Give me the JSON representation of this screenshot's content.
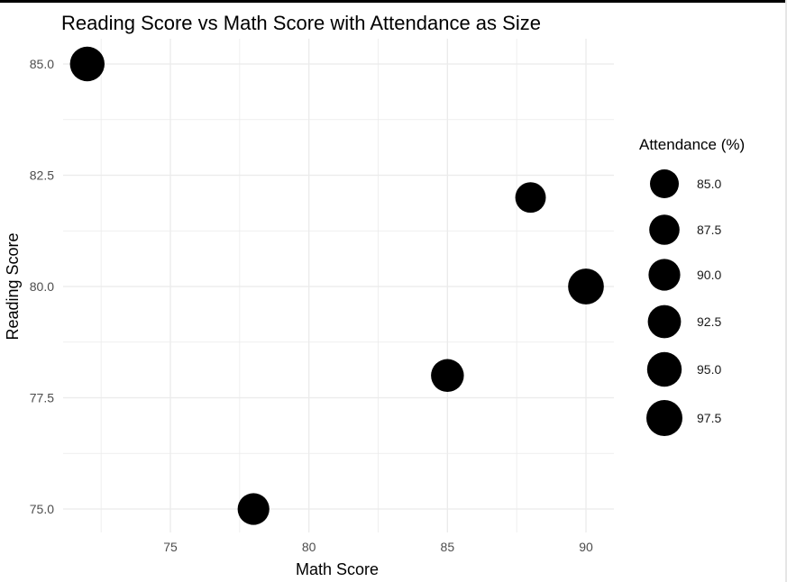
{
  "chart_data": {
    "type": "scatter",
    "title": "Reading Score vs Math Score with Attendance as Size",
    "xlabel": "Math Score",
    "ylabel": "Reading Score",
    "xlim": [
      71,
      91
    ],
    "ylim": [
      74.5,
      85.5
    ],
    "x_ticks": [
      75,
      80,
      85,
      90
    ],
    "x_tick_labels": [
      "75",
      "80",
      "85",
      "90"
    ],
    "y_ticks": [
      75,
      77.5,
      80,
      82.5,
      85
    ],
    "y_tick_labels": [
      "75.0",
      "77.5",
      "80.0",
      "82.5",
      "85.0"
    ],
    "points": [
      {
        "x": 72,
        "y": 85,
        "size": 95
      },
      {
        "x": 78,
        "y": 75,
        "size": 90
      },
      {
        "x": 85,
        "y": 78,
        "size": 92
      },
      {
        "x": 88,
        "y": 82,
        "size": 88
      },
      {
        "x": 90,
        "y": 80,
        "size": 97
      }
    ],
    "legend": {
      "title": "Attendance (%)",
      "position": "right",
      "entries": [
        "85.0",
        "87.5",
        "90.0",
        "92.5",
        "95.0",
        "97.5"
      ]
    },
    "marker_color": "#000000",
    "grid_color": "#ebebeb",
    "grid": true
  }
}
